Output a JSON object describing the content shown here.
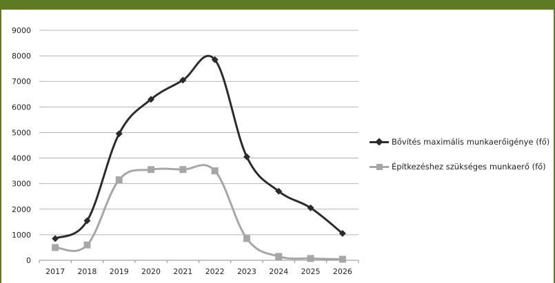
{
  "chart_data": {
    "type": "line",
    "title": "",
    "xlabel": "",
    "ylabel": "",
    "categories": [
      "2017",
      "2018",
      "2019",
      "2020",
      "2021",
      "2022",
      "2023",
      "2024",
      "2025",
      "2026"
    ],
    "ylim": [
      0,
      9000
    ],
    "yticks": [
      "0",
      "1000",
      "2000",
      "3000",
      "4000",
      "5000",
      "6000",
      "7000",
      "8000",
      "9000"
    ],
    "grid": true,
    "legend_position": "right",
    "series": [
      {
        "name": "Bővítés maximális munkaerőigénye (fő)",
        "marker": "diamond",
        "color": "#2b2b2b",
        "values": [
          850,
          1550,
          4950,
          6300,
          7050,
          7850,
          4050,
          2700,
          2050,
          1050
        ]
      },
      {
        "name": "Építkezéshez szükséges munkaerő (fő)",
        "marker": "square",
        "color": "#a6a6a6",
        "values": [
          500,
          600,
          3150,
          3550,
          3550,
          3500,
          850,
          150,
          70,
          40
        ]
      }
    ]
  },
  "colors": {
    "frame": "#5e7a23",
    "grid": "#b3b3b3"
  }
}
